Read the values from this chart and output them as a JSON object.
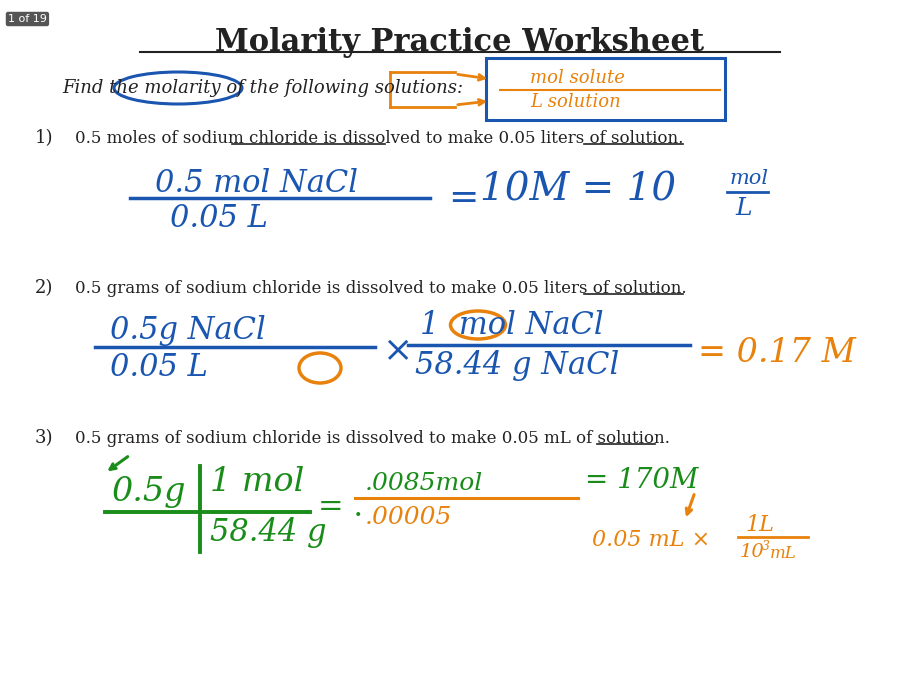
{
  "bg_color": "#ffffff",
  "page_label": "1 of 19",
  "title": "Molarity Practice Worksheet",
  "subtitle": "Find the molarity of the following solutions:",
  "q1_text": "0.5 moles of sodium chloride is dissolved to make 0.05 liters of solution.",
  "q2_text": "0.5 grams of sodium chloride is dissolved to make 0.05 liters of solution.",
  "q3_text": "0.5 grams of sodium chloride is dissolved to make 0.05 mL of solution.",
  "blue": "#1a56b0",
  "orange": "#e8820c",
  "green": "#1a8c1a",
  "dark": "#222222",
  "gray": "#888888"
}
